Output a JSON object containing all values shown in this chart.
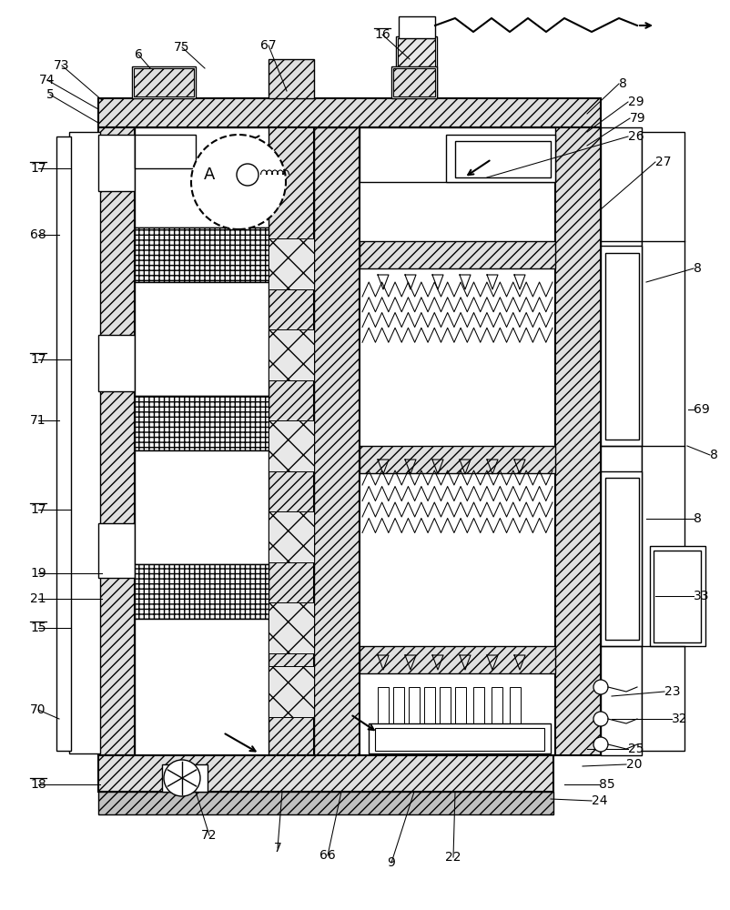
{
  "bg_color": "#ffffff",
  "fig_width": 8.02,
  "fig_height": 10.0,
  "dpi": 100
}
